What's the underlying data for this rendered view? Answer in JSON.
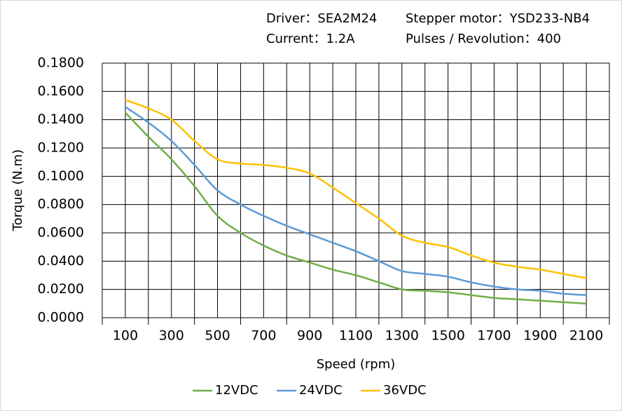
{
  "chart_data": {
    "type": "line",
    "header": [
      "Driver：SEA2M24",
      "Stepper motor：YSD233-NB4",
      "Current：1.2A",
      "Pulses / Revolution：400"
    ],
    "xlabel": "Speed  (rpm)",
    "ylabel": "Torque (N.m)",
    "x": [
      100,
      200,
      300,
      400,
      500,
      600,
      700,
      800,
      900,
      1000,
      1100,
      1200,
      1300,
      1400,
      1500,
      1600,
      1700,
      1800,
      1900,
      2000,
      2100
    ],
    "series": [
      {
        "name": "12VDC",
        "color": "#70ad47",
        "values": [
          0.145,
          0.128,
          0.112,
          0.093,
          0.072,
          0.06,
          0.051,
          0.044,
          0.039,
          0.034,
          0.03,
          0.025,
          0.02,
          0.019,
          0.018,
          0.016,
          0.014,
          0.013,
          0.012,
          0.011,
          0.01
        ]
      },
      {
        "name": "24VDC",
        "color": "#5b9bd5",
        "values": [
          0.149,
          0.138,
          0.125,
          0.108,
          0.09,
          0.08,
          0.072,
          0.065,
          0.059,
          0.053,
          0.047,
          0.04,
          0.033,
          0.031,
          0.029,
          0.025,
          0.022,
          0.02,
          0.019,
          0.017,
          0.016
        ]
      },
      {
        "name": "36VDC",
        "color": "#ffc000",
        "values": [
          0.154,
          0.148,
          0.14,
          0.125,
          0.112,
          0.109,
          0.108,
          0.106,
          0.102,
          0.092,
          0.081,
          0.07,
          0.058,
          0.053,
          0.05,
          0.044,
          0.039,
          0.036,
          0.034,
          0.031,
          0.028
        ]
      }
    ],
    "xlim": [
      0,
      2200
    ],
    "xticks": [
      100,
      300,
      500,
      700,
      900,
      1100,
      1300,
      1500,
      1700,
      1900,
      2100
    ],
    "xminor": [
      0,
      200,
      400,
      600,
      800,
      1000,
      1200,
      1400,
      1600,
      1800,
      2000,
      2200
    ],
    "ylim": [
      0,
      0.18
    ],
    "yticks": [
      {
        "value": 0,
        "label": "0.0000"
      },
      {
        "value": 0.02,
        "label": "0.0200"
      },
      {
        "value": 0.04,
        "label": "0.0400"
      },
      {
        "value": 0.06,
        "label": "0.0600"
      },
      {
        "value": 0.08,
        "label": "0.0800"
      },
      {
        "value": 0.1,
        "label": "0.1000"
      },
      {
        "value": 0.12,
        "label": "0.1200"
      },
      {
        "value": 0.14,
        "label": "0.1400"
      },
      {
        "value": 0.16,
        "label": "0.1600"
      },
      {
        "value": 0.18,
        "label": "0.1800"
      }
    ],
    "grid": true,
    "legend": "bottom"
  }
}
